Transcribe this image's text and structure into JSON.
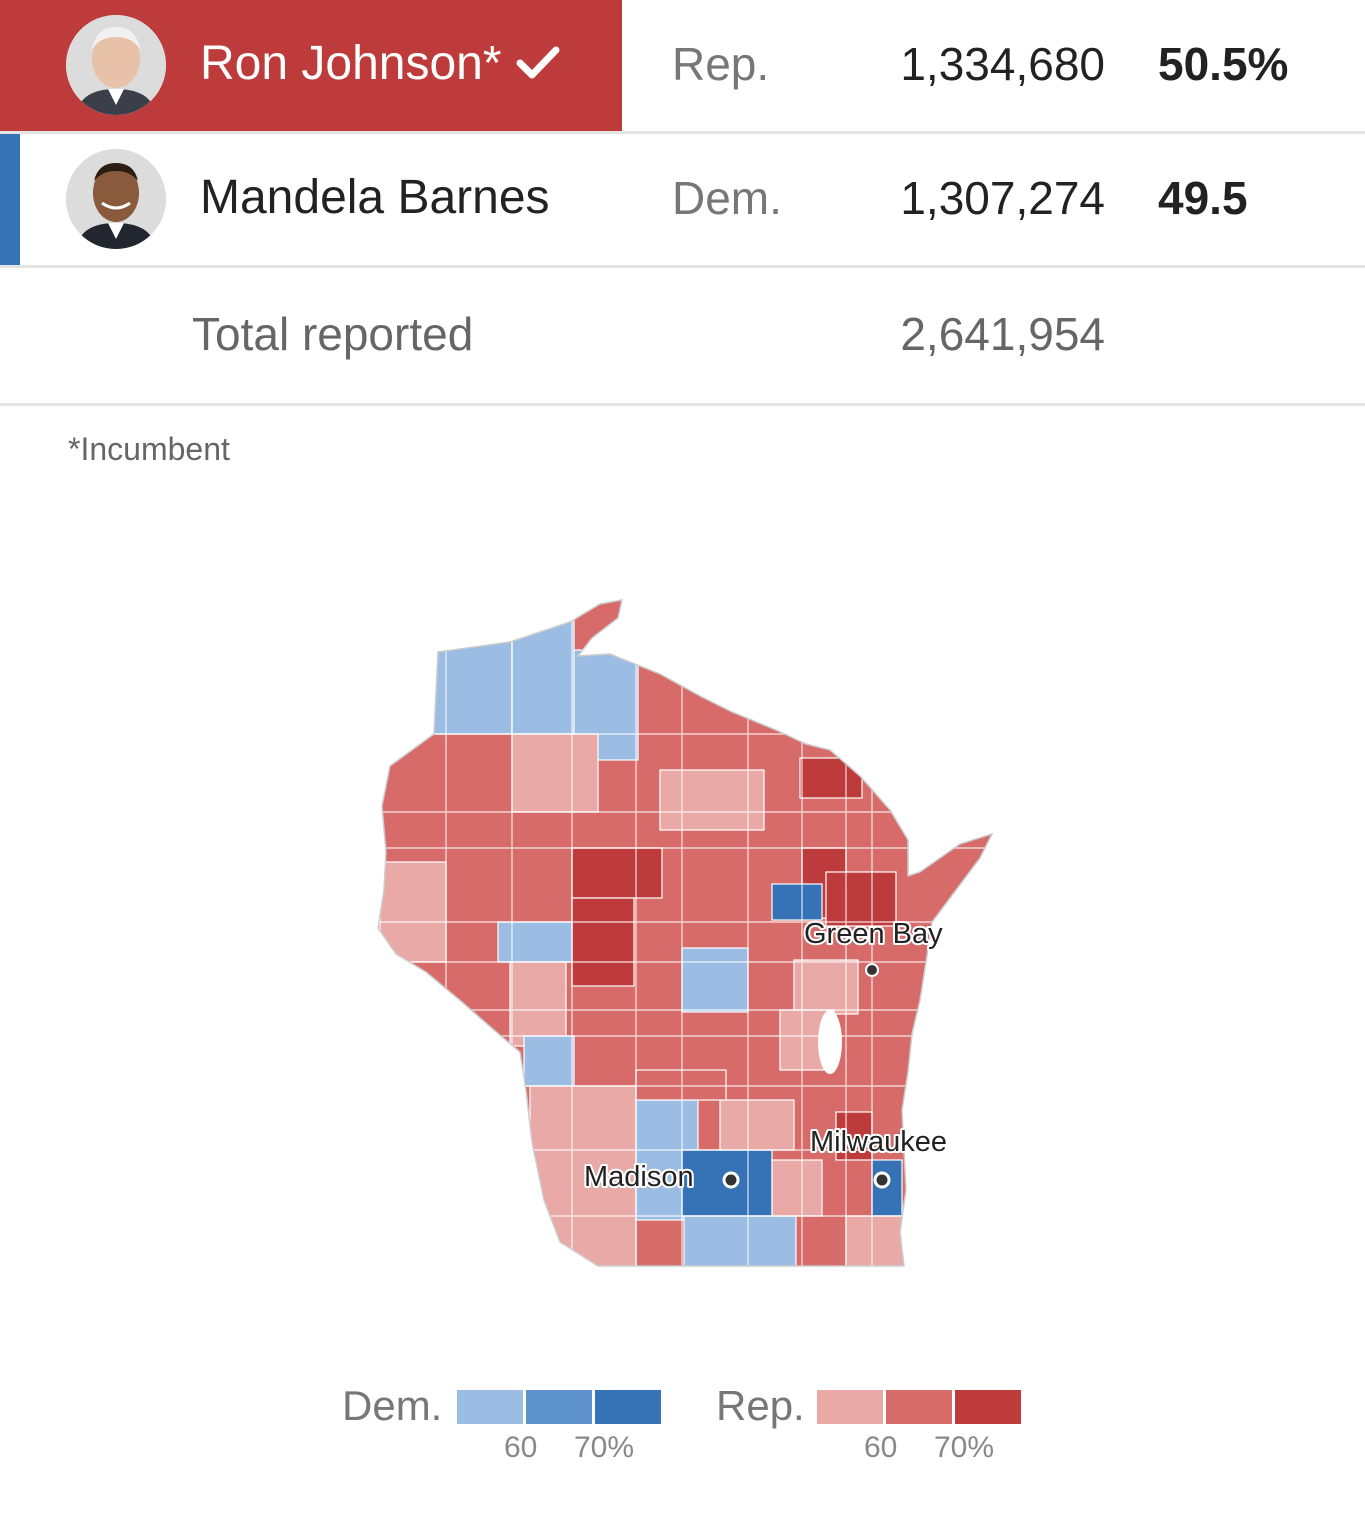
{
  "candidates": [
    {
      "name": "Ron Johnson*",
      "party": "Rep.",
      "votes": "1,334,680",
      "pct": "50.5%",
      "winner": true,
      "color": "#be3b3b",
      "avatar_icon": "candidate-photo"
    },
    {
      "name": "Mandela Barnes",
      "party": "Dem.",
      "votes": "1,307,274",
      "pct": "49.5",
      "winner": false,
      "color": "#3672b6",
      "avatar_icon": "candidate-photo"
    }
  ],
  "total": {
    "label": "Total reported",
    "value": "2,641,954"
  },
  "footnote": "*Incumbent",
  "map": {
    "cities": [
      {
        "name": "Green Bay"
      },
      {
        "name": "Madison"
      },
      {
        "name": "Milwaukee"
      }
    ],
    "colors": {
      "dem_light": "#9bbde3",
      "dem_mid": "#5d92cd",
      "dem_dark": "#3672b6",
      "rep_light": "#e9a9a7",
      "rep_mid": "#d66b6a",
      "rep_dark": "#be3b3b"
    }
  },
  "legend": {
    "dem_label": "Dem.",
    "rep_label": "Rep.",
    "tick_60": "60",
    "tick_70": "70%"
  }
}
